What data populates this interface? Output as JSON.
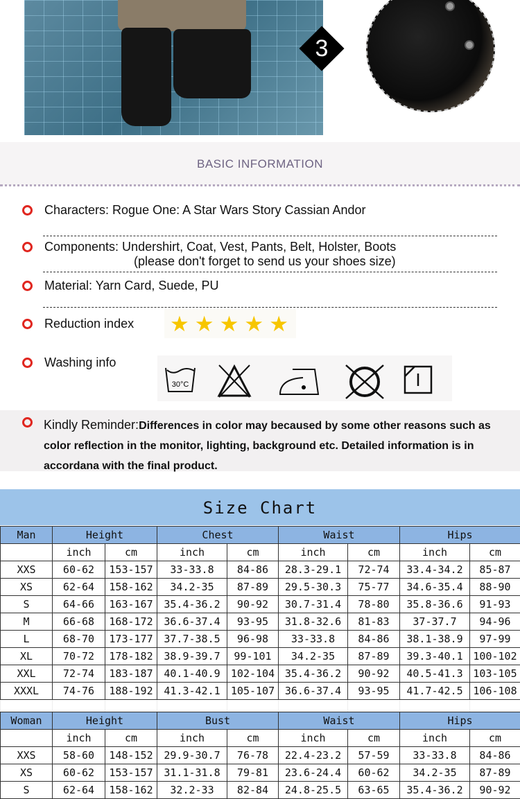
{
  "photo": {
    "step_badge": "3"
  },
  "basic_info": {
    "title": "BASIC INFORMATION",
    "characters": "Characters: Rogue One: A Star Wars Story Cassian Andor",
    "components": "Components: Undershirt, Coat, Vest, Pants, Belt, Holster, Boots",
    "components_note": "(please don't forget to send us your shoes size)",
    "material": "Material: Yarn Card, Suede, PU",
    "reduction_label": "Reduction index",
    "reduction_stars": 5,
    "washing_label": "Washing info",
    "washing_icons": [
      "wash-30c-icon",
      "no-bleach-icon",
      "iron-low-icon",
      "no-tumble-dry-icon",
      "dry-flat-icon"
    ],
    "wash_temp": "30°C",
    "reminder_label": "Kindly Reminder:",
    "reminder_text": "Differences in color may becaused by some other reasons such as color reflection in the monitor, lighting, background etc. Detailed information is in accordana with the final product."
  },
  "colors": {
    "bullet": "#e0261f",
    "star": "#f7c600",
    "table_header": "#8db4e2",
    "title_band": "#9cc3e9"
  },
  "size_chart": {
    "title": "Size Chart",
    "man": {
      "headers": [
        "Man",
        "Height",
        "Chest",
        "Waist",
        "Hips"
      ],
      "units": [
        "inch",
        "cm",
        "inch",
        "cm",
        "inch",
        "cm",
        "inch",
        "cm"
      ],
      "rows": [
        [
          "XXS",
          "60-62",
          "153-157",
          "33-33.8",
          "84-86",
          "28.3-29.1",
          "72-74",
          "33.4-34.2",
          "85-87"
        ],
        [
          "XS",
          "62-64",
          "158-162",
          "34.2-35",
          "87-89",
          "29.5-30.3",
          "75-77",
          "34.6-35.4",
          "88-90"
        ],
        [
          "S",
          "64-66",
          "163-167",
          "35.4-36.2",
          "90-92",
          "30.7-31.4",
          "78-80",
          "35.8-36.6",
          "91-93"
        ],
        [
          "M",
          "66-68",
          "168-172",
          "36.6-37.4",
          "93-95",
          "31.8-32.6",
          "81-83",
          "37-37.7",
          "94-96"
        ],
        [
          "L",
          "68-70",
          "173-177",
          "37.7-38.5",
          "96-98",
          "33-33.8",
          "84-86",
          "38.1-38.9",
          "97-99"
        ],
        [
          "XL",
          "70-72",
          "178-182",
          "38.9-39.7",
          "99-101",
          "34.2-35",
          "87-89",
          "39.3-40.1",
          "100-102"
        ],
        [
          "XXL",
          "72-74",
          "183-187",
          "40.1-40.9",
          "102-104",
          "35.4-36.2",
          "90-92",
          "40.5-41.3",
          "103-105"
        ],
        [
          "XXXL",
          "74-76",
          "188-192",
          "41.3-42.1",
          "105-107",
          "36.6-37.4",
          "93-95",
          "41.7-42.5",
          "106-108"
        ]
      ]
    },
    "woman": {
      "headers": [
        "Woman",
        "Height",
        "Bust",
        "Waist",
        "Hips"
      ],
      "units": [
        "inch",
        "cm",
        "inch",
        "cm",
        "inch",
        "cm",
        "inch",
        "cm"
      ],
      "rows": [
        [
          "XXS",
          "58-60",
          "148-152",
          "29.9-30.7",
          "76-78",
          "22.4-23.2",
          "57-59",
          "33-33.8",
          "84-86"
        ],
        [
          "XS",
          "60-62",
          "153-157",
          "31.1-31.8",
          "79-81",
          "23.6-24.4",
          "60-62",
          "34.2-35",
          "87-89"
        ],
        [
          "S",
          "62-64",
          "158-162",
          "32.2-33",
          "82-84",
          "24.8-25.5",
          "63-65",
          "35.4-36.2",
          "90-92"
        ]
      ]
    }
  }
}
